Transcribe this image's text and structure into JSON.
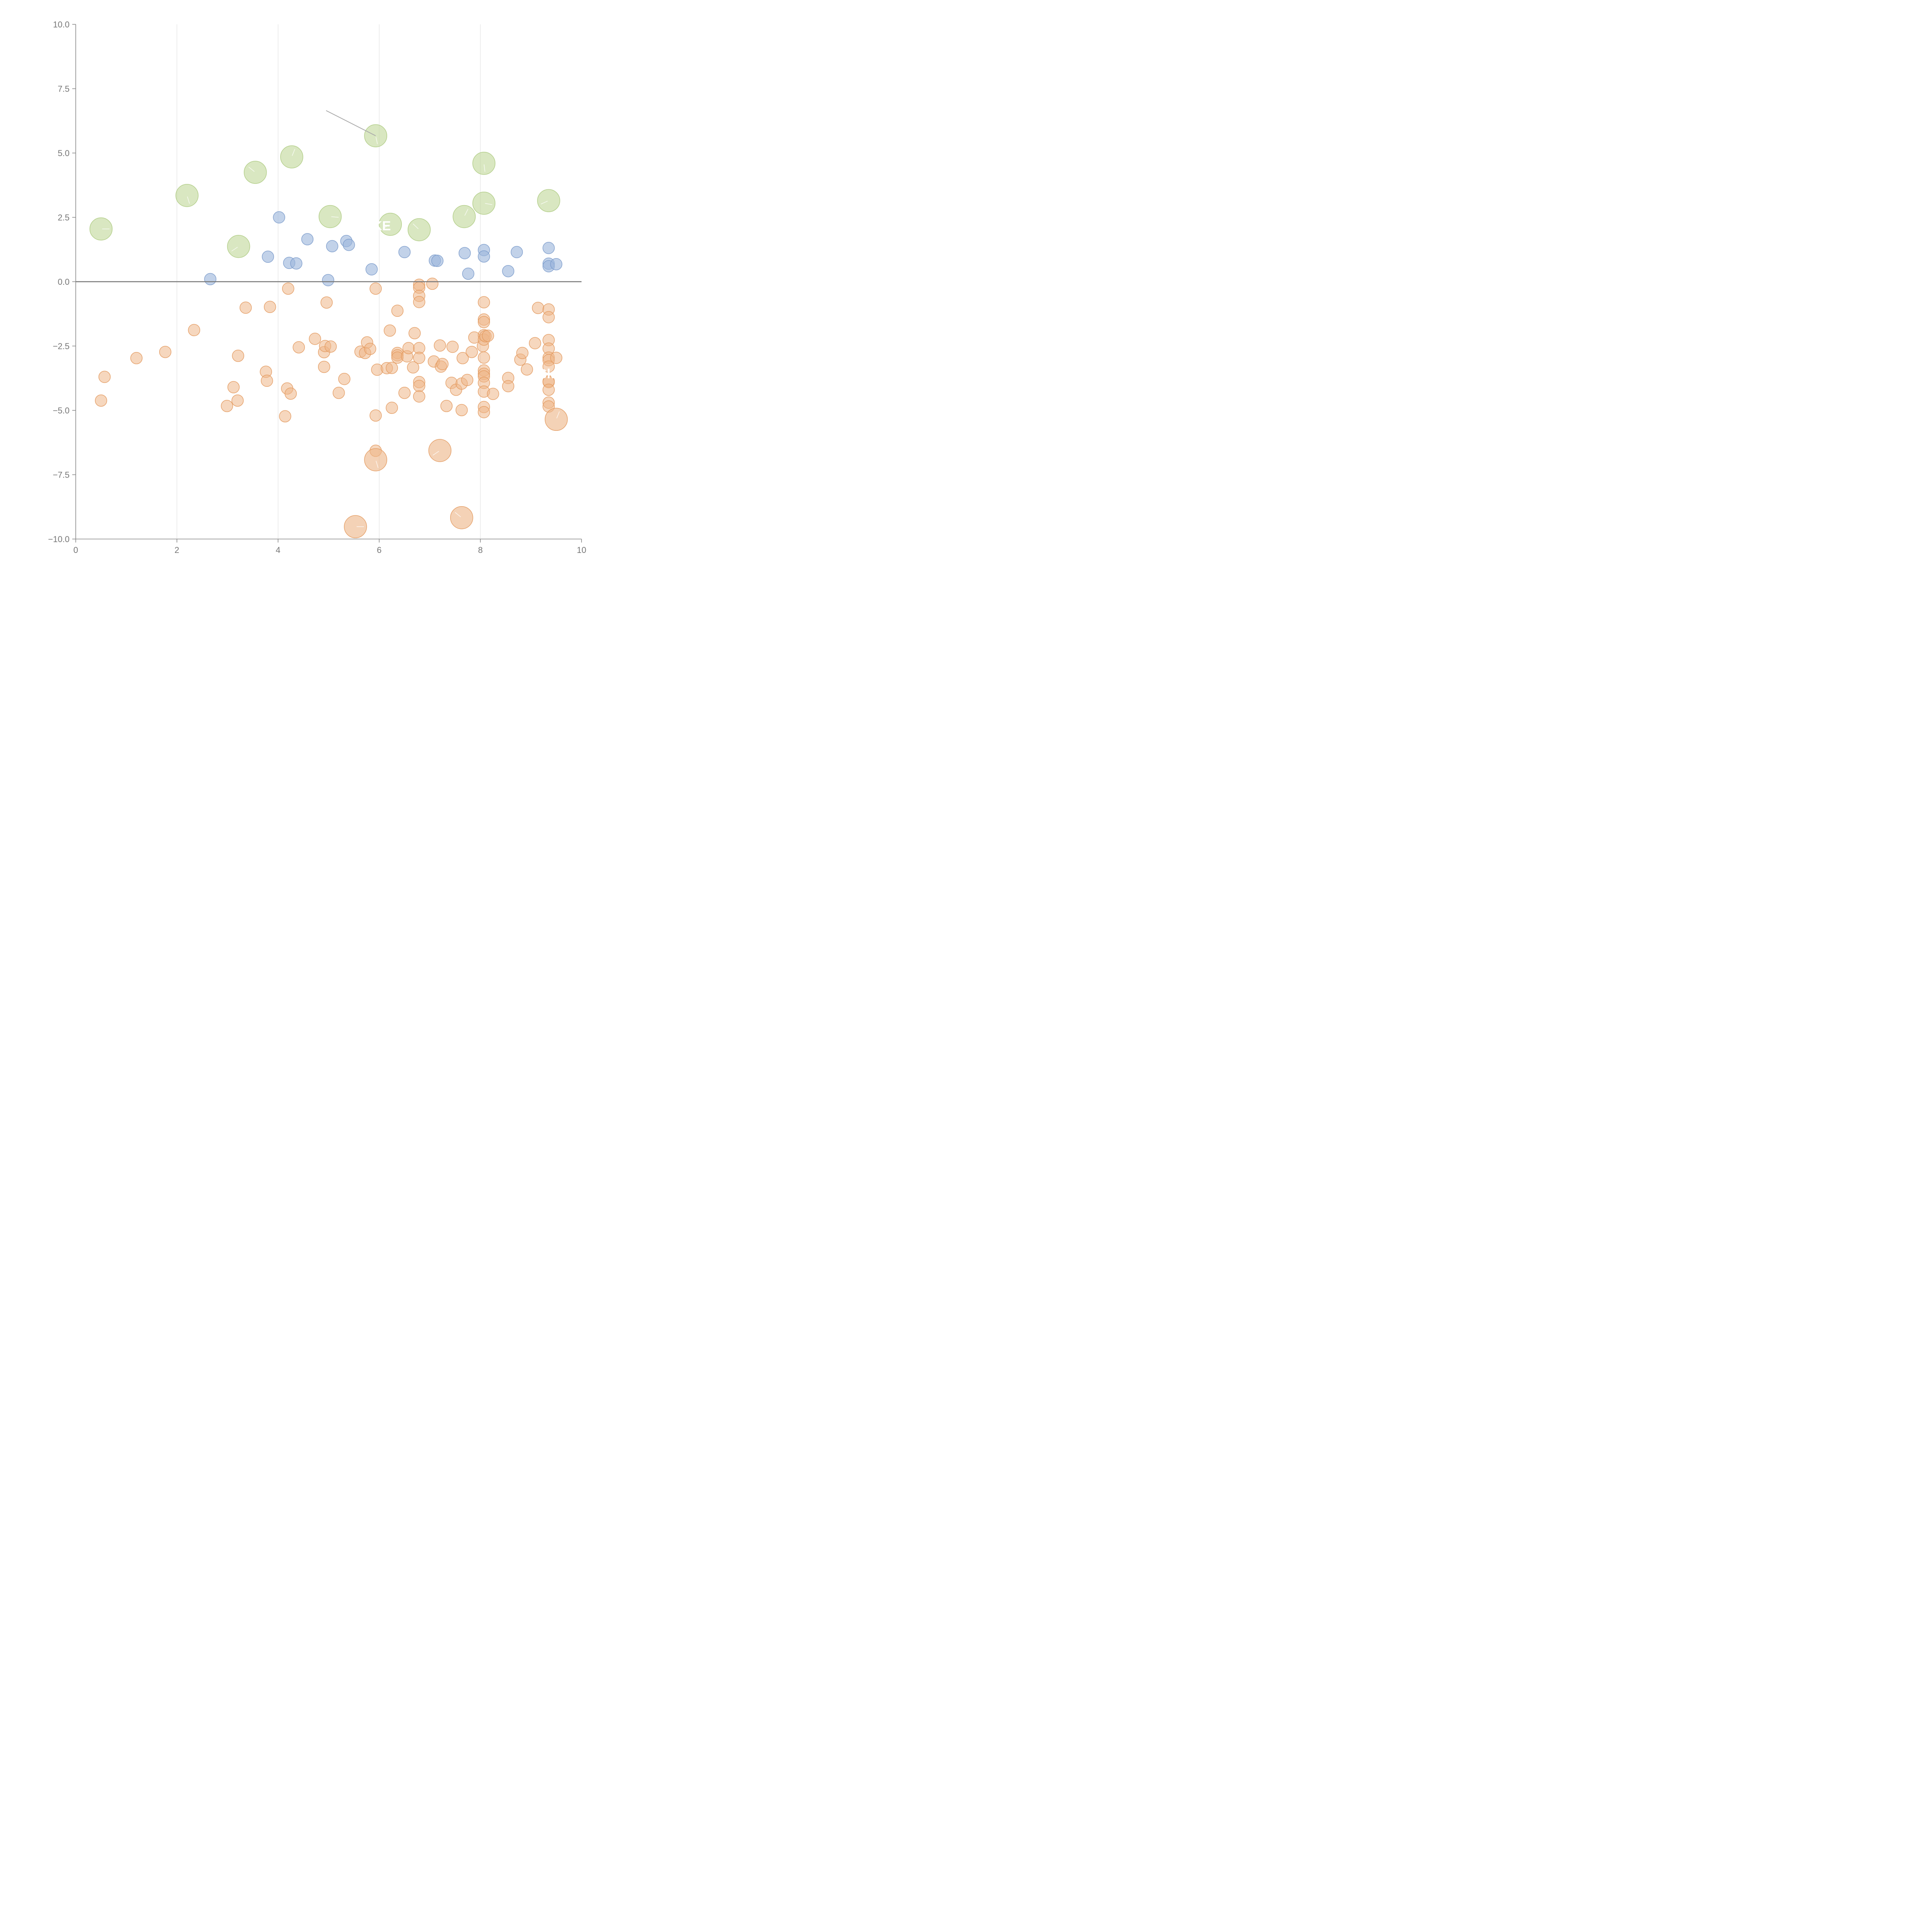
{
  "chart_data": {
    "type": "scatter",
    "title": "",
    "xlabel": "",
    "ylabel": "",
    "xlim": [
      0,
      10
    ],
    "ylim": [
      -10,
      10
    ],
    "x_ticks": [
      0,
      2,
      4,
      6,
      8,
      10
    ],
    "y_ticks": [
      -10,
      -7.5,
      -5,
      -2.5,
      0,
      2.5,
      5,
      7.5,
      10
    ],
    "x_tick_labels": [
      "0",
      "2",
      "4",
      "6",
      "8",
      "10"
    ],
    "y_tick_labels": [
      "−10.0",
      "−7.5",
      "−5.0",
      "−2.5",
      "0.0",
      "2.5",
      "5.0",
      "7.5",
      "10.0"
    ],
    "grid": "vertical",
    "reference_line_y": 0,
    "colors": {
      "green": "#c2d99b",
      "green_stroke": "#aecb82",
      "blue": "#9db6dc",
      "blue_stroke": "#7b9bcb",
      "orange": "#eeb789",
      "orange_stroke": "#e39a5f",
      "axis": "#888888",
      "zero_line": "#777777"
    },
    "series": [
      {
        "name": "green",
        "bubble_size": "large",
        "points": [
          [
            0.5,
            2.05
          ],
          [
            2.2,
            3.35
          ],
          [
            3.22,
            1.37
          ],
          [
            3.55,
            4.25
          ],
          [
            4.27,
            4.85
          ],
          [
            5.03,
            2.53
          ],
          [
            5.93,
            5.67
          ],
          [
            6.22,
            2.23
          ],
          [
            6.79,
            2.02
          ],
          [
            7.68,
            2.53
          ],
          [
            8.07,
            3.05
          ],
          [
            8.07,
            4.6
          ],
          [
            9.35,
            3.15
          ]
        ]
      },
      {
        "name": "blue",
        "bubble_size": "small",
        "points": [
          [
            2.66,
            0.1
          ],
          [
            3.8,
            0.97
          ],
          [
            4.02,
            2.5
          ],
          [
            4.22,
            0.73
          ],
          [
            4.36,
            0.71
          ],
          [
            4.58,
            1.65
          ],
          [
            4.99,
            0.06
          ],
          [
            5.07,
            1.38
          ],
          [
            5.35,
            1.58
          ],
          [
            5.4,
            1.43
          ],
          [
            5.85,
            0.48
          ],
          [
            6.5,
            1.15
          ],
          [
            7.1,
            0.82
          ],
          [
            7.15,
            0.81
          ],
          [
            7.69,
            1.11
          ],
          [
            7.76,
            0.31
          ],
          [
            8.07,
            1.23
          ],
          [
            8.07,
            0.98
          ],
          [
            8.55,
            0.41
          ],
          [
            8.72,
            1.15
          ],
          [
            9.35,
            1.31
          ],
          [
            9.35,
            0.7
          ],
          [
            9.35,
            0.6
          ],
          [
            9.5,
            0.68
          ]
        ]
      },
      {
        "name": "orange",
        "bubble_size": "small",
        "points": [
          [
            0.5,
            -4.62
          ],
          [
            0.57,
            -3.7
          ],
          [
            1.2,
            -2.97
          ],
          [
            1.77,
            -2.73
          ],
          [
            2.34,
            -1.88
          ],
          [
            2.99,
            -4.83
          ],
          [
            3.12,
            -4.1
          ],
          [
            3.2,
            -4.62
          ],
          [
            3.21,
            -2.88
          ],
          [
            3.36,
            -1.01
          ],
          [
            3.76,
            -3.5
          ],
          [
            3.78,
            -3.85
          ],
          [
            3.84,
            -0.98
          ],
          [
            4.14,
            -5.23
          ],
          [
            4.18,
            -4.15
          ],
          [
            4.2,
            -0.27
          ],
          [
            4.25,
            -4.35
          ],
          [
            4.41,
            -2.55
          ],
          [
            4.73,
            -2.22
          ],
          [
            4.91,
            -3.31
          ],
          [
            4.91,
            -2.74
          ],
          [
            4.93,
            -2.5
          ],
          [
            4.96,
            -0.81
          ],
          [
            5.04,
            -2.52
          ],
          [
            5.2,
            -4.32
          ],
          [
            5.31,
            -3.78
          ],
          [
            5.63,
            -2.72
          ],
          [
            5.72,
            -2.77
          ],
          [
            5.76,
            -2.36
          ],
          [
            5.82,
            -2.61
          ],
          [
            5.93,
            -0.27
          ],
          [
            5.93,
            -5.2
          ],
          [
            5.93,
            -6.57
          ],
          [
            5.96,
            -3.42
          ],
          [
            6.15,
            -3.36
          ],
          [
            6.25,
            -3.35
          ],
          [
            6.25,
            -4.9
          ],
          [
            6.36,
            -1.13
          ],
          [
            6.36,
            -2.77
          ],
          [
            6.36,
            -2.86
          ],
          [
            6.36,
            -2.95
          ],
          [
            6.21,
            -1.9
          ],
          [
            6.5,
            -4.32
          ],
          [
            6.55,
            -2.9
          ],
          [
            6.58,
            -2.58
          ],
          [
            6.67,
            -3.33
          ],
          [
            6.7,
            -2.0
          ],
          [
            6.79,
            -0.12
          ],
          [
            6.79,
            -0.23
          ],
          [
            6.79,
            -0.55
          ],
          [
            6.79,
            -0.79
          ],
          [
            6.79,
            -2.58
          ],
          [
            6.79,
            -2.96
          ],
          [
            6.79,
            -3.9
          ],
          [
            6.79,
            -4.05
          ],
          [
            6.79,
            -4.46
          ],
          [
            7.05,
            -0.08
          ],
          [
            7.08,
            -3.1
          ],
          [
            7.2,
            -2.48
          ],
          [
            7.22,
            -3.3
          ],
          [
            7.25,
            -3.2
          ],
          [
            7.33,
            -4.83
          ],
          [
            7.43,
            -3.93
          ],
          [
            7.45,
            -2.53
          ],
          [
            7.52,
            -4.2
          ],
          [
            7.63,
            -3.96
          ],
          [
            7.63,
            -4.99
          ],
          [
            7.65,
            -2.97
          ],
          [
            7.74,
            -3.82
          ],
          [
            7.83,
            -2.73
          ],
          [
            7.88,
            -2.17
          ],
          [
            8.05,
            -2.5
          ],
          [
            8.07,
            -0.8
          ],
          [
            8.07,
            -1.47
          ],
          [
            8.07,
            -1.57
          ],
          [
            8.07,
            -2.08
          ],
          [
            8.07,
            -2.25
          ],
          [
            8.07,
            -2.95
          ],
          [
            8.07,
            -3.45
          ],
          [
            8.07,
            -3.58
          ],
          [
            8.07,
            -3.68
          ],
          [
            8.07,
            -3.93
          ],
          [
            8.07,
            -4.27
          ],
          [
            8.07,
            -4.87
          ],
          [
            8.07,
            -5.07
          ],
          [
            8.1,
            -2.12
          ],
          [
            8.15,
            -2.1
          ],
          [
            8.25,
            -4.36
          ],
          [
            8.55,
            -3.74
          ],
          [
            8.55,
            -4.06
          ],
          [
            8.79,
            -3.03
          ],
          [
            8.83,
            -2.77
          ],
          [
            8.92,
            -3.41
          ],
          [
            9.08,
            -2.39
          ],
          [
            9.14,
            -1.02
          ],
          [
            9.35,
            -1.08
          ],
          [
            9.35,
            -1.38
          ],
          [
            9.35,
            -2.27
          ],
          [
            9.35,
            -2.6
          ],
          [
            9.35,
            -2.95
          ],
          [
            9.35,
            -3.05
          ],
          [
            9.35,
            -3.3
          ],
          [
            9.35,
            -3.87
          ],
          [
            9.35,
            -3.9
          ],
          [
            9.35,
            -4.2
          ],
          [
            9.35,
            -4.7
          ],
          [
            9.35,
            -4.85
          ],
          [
            9.5,
            -2.96
          ]
        ]
      },
      {
        "name": "orange-large",
        "bubble_size": "large",
        "points": [
          [
            5.53,
            -9.52
          ],
          [
            5.93,
            -6.92
          ],
          [
            7.2,
            -6.56
          ],
          [
            7.63,
            -9.17
          ],
          [
            9.5,
            -5.35
          ]
        ]
      }
    ],
    "annotations": [
      {
        "text": "KE",
        "x": 6.05,
        "y": 2.0
      },
      {
        "text": "Sk",
        "x": 9.3,
        "y": -3.75
      }
    ],
    "callout": {
      "from": [
        4.95,
        6.65
      ],
      "to": [
        5.93,
        5.67
      ]
    }
  }
}
